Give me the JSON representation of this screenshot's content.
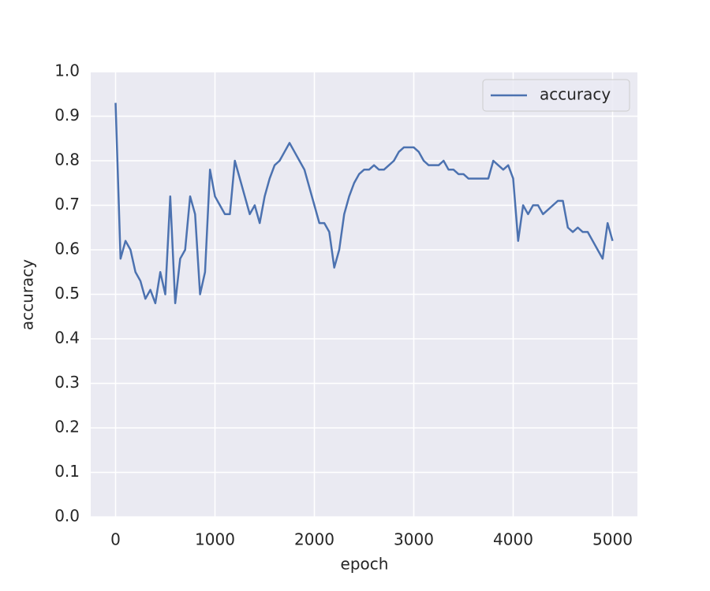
{
  "chart_data": {
    "type": "line",
    "xlabel": "epoch",
    "ylabel": "accuracy",
    "x": [
      0,
      50,
      100,
      150,
      200,
      250,
      300,
      350,
      400,
      450,
      500,
      550,
      600,
      650,
      700,
      750,
      800,
      850,
      900,
      950,
      1000,
      1050,
      1100,
      1150,
      1200,
      1250,
      1300,
      1350,
      1400,
      1450,
      1500,
      1550,
      1600,
      1650,
      1700,
      1750,
      1800,
      1850,
      1900,
      1950,
      2000,
      2050,
      2100,
      2150,
      2200,
      2250,
      2300,
      2350,
      2400,
      2450,
      2500,
      2550,
      2600,
      2650,
      2700,
      2750,
      2800,
      2850,
      2900,
      2950,
      3000,
      3050,
      3100,
      3150,
      3200,
      3250,
      3300,
      3350,
      3400,
      3450,
      3500,
      3550,
      3600,
      3650,
      3700,
      3750,
      3800,
      3850,
      3900,
      3950,
      4000,
      4050,
      4100,
      4150,
      4200,
      4250,
      4300,
      4350,
      4400,
      4450,
      4500,
      4550,
      4600,
      4650,
      4700,
      4750,
      4800,
      4850,
      4900,
      4950,
      5000
    ],
    "series": [
      {
        "name": "accuracy",
        "color": "#4c72b0",
        "values": [
          0.93,
          0.58,
          0.62,
          0.6,
          0.55,
          0.53,
          0.49,
          0.51,
          0.48,
          0.55,
          0.5,
          0.72,
          0.48,
          0.58,
          0.6,
          0.72,
          0.68,
          0.5,
          0.55,
          0.78,
          0.72,
          0.7,
          0.68,
          0.68,
          0.8,
          0.76,
          0.72,
          0.68,
          0.7,
          0.66,
          0.72,
          0.76,
          0.79,
          0.8,
          0.82,
          0.84,
          0.82,
          0.8,
          0.78,
          0.74,
          0.7,
          0.66,
          0.66,
          0.64,
          0.56,
          0.6,
          0.68,
          0.72,
          0.75,
          0.77,
          0.78,
          0.78,
          0.79,
          0.78,
          0.78,
          0.79,
          0.8,
          0.82,
          0.83,
          0.83,
          0.83,
          0.82,
          0.8,
          0.79,
          0.79,
          0.79,
          0.8,
          0.78,
          0.78,
          0.77,
          0.77,
          0.76,
          0.76,
          0.76,
          0.76,
          0.76,
          0.8,
          0.79,
          0.78,
          0.79,
          0.76,
          0.62,
          0.7,
          0.68,
          0.7,
          0.7,
          0.68,
          0.69,
          0.7,
          0.71,
          0.71,
          0.65,
          0.64,
          0.65,
          0.64,
          0.64,
          0.62,
          0.6,
          0.58,
          0.66,
          0.62
        ]
      }
    ],
    "xlim": [
      -250,
      5250
    ],
    "xticks": [
      0,
      1000,
      2000,
      3000,
      4000,
      5000
    ],
    "ylim": [
      0,
      1
    ],
    "yticks": [
      {
        "value": 0,
        "label": "0.0"
      },
      0.1,
      0.2,
      0.3,
      0.4,
      0.5,
      0.6,
      0.7,
      0.8,
      0.9,
      {
        "value": 1,
        "label": "1.0"
      }
    ],
    "grid": true,
    "legend": "upper right"
  }
}
